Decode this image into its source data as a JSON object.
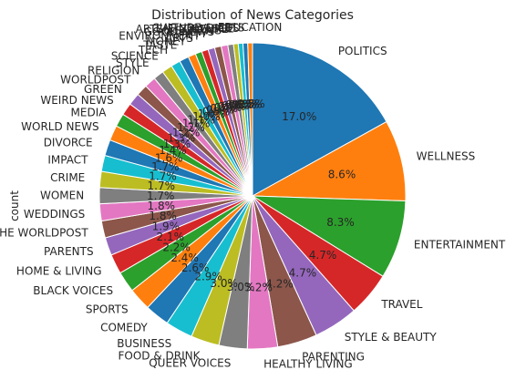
{
  "chart_data": {
    "type": "pie",
    "title": "Distribution of News Categories",
    "ylabel": "count",
    "start_angle_deg": 90,
    "direction": "clockwise",
    "slices": [
      {
        "label": "POLITICS",
        "pct": 17.0,
        "color": "#1f77b4"
      },
      {
        "label": "WELLNESS",
        "pct": 8.6,
        "color": "#ff7f0e"
      },
      {
        "label": "ENTERTAINMENT",
        "pct": 8.3,
        "color": "#2ca02c"
      },
      {
        "label": "TRAVEL",
        "pct": 4.7,
        "color": "#d62728"
      },
      {
        "label": "STYLE & BEAUTY",
        "pct": 4.7,
        "color": "#9467bd"
      },
      {
        "label": "PARENTING",
        "pct": 4.2,
        "color": "#8c564b"
      },
      {
        "label": "HEALTHY LIVING",
        "pct": 3.2,
        "color": "#e377c2"
      },
      {
        "label": "QUEER VOICES",
        "pct": 3.0,
        "color": "#7f7f7f"
      },
      {
        "label": "FOOD & DRINK",
        "pct": 3.0,
        "color": "#bcbd22"
      },
      {
        "label": "BUSINESS",
        "pct": 2.9,
        "color": "#17becf"
      },
      {
        "label": "COMEDY",
        "pct": 2.6,
        "color": "#1f77b4"
      },
      {
        "label": "SPORTS",
        "pct": 2.4,
        "color": "#ff7f0e"
      },
      {
        "label": "BLACK VOICES",
        "pct": 2.2,
        "color": "#2ca02c"
      },
      {
        "label": "HOME & LIVING",
        "pct": 2.1,
        "color": "#d62728"
      },
      {
        "label": "PARENTS",
        "pct": 1.9,
        "color": "#9467bd"
      },
      {
        "label": "THE WORLDPOST",
        "pct": 1.8,
        "color": "#8c564b"
      },
      {
        "label": "WEDDINGS",
        "pct": 1.8,
        "color": "#e377c2"
      },
      {
        "label": "WOMEN",
        "pct": 1.7,
        "color": "#7f7f7f"
      },
      {
        "label": "CRIME",
        "pct": 1.7,
        "color": "#bcbd22"
      },
      {
        "label": "IMPACT",
        "pct": 1.7,
        "color": "#17becf"
      },
      {
        "label": "DIVORCE",
        "pct": 1.7,
        "color": "#1f77b4"
      },
      {
        "label": "WORLD NEWS",
        "pct": 1.6,
        "color": "#ff7f0e"
      },
      {
        "label": "MEDIA",
        "pct": 1.4,
        "color": "#2ca02c"
      },
      {
        "label": "WEIRD NEWS",
        "pct": 1.3,
        "color": "#d62728"
      },
      {
        "label": "GREEN",
        "pct": 1.3,
        "color": "#9467bd"
      },
      {
        "label": "WORLDPOST",
        "pct": 1.2,
        "color": "#8c564b"
      },
      {
        "label": "RELIGION",
        "pct": 1.2,
        "color": "#e377c2"
      },
      {
        "label": "STYLE",
        "pct": 1.1,
        "color": "#7f7f7f"
      },
      {
        "label": "SCIENCE",
        "pct": 1.1,
        "color": "#bcbd22"
      },
      {
        "label": "TECH",
        "pct": 1.0,
        "color": "#17becf"
      },
      {
        "label": "TASTE",
        "pct": 1.0,
        "color": "#1f77b4"
      },
      {
        "label": "MONEY",
        "pct": 0.8,
        "color": "#ff7f0e"
      },
      {
        "label": "ARTS",
        "pct": 0.7,
        "color": "#2ca02c"
      },
      {
        "label": "ENVIRONMENT",
        "pct": 0.7,
        "color": "#d62728"
      },
      {
        "label": "FIFTY",
        "pct": 0.7,
        "color": "#9467bd"
      },
      {
        "label": "GOOD NEWS",
        "pct": 0.7,
        "color": "#8c564b"
      },
      {
        "label": "U.S. NEWS",
        "pct": 0.7,
        "color": "#e377c2"
      },
      {
        "label": "ARTS & CULTURE",
        "pct": 0.6,
        "color": "#7f7f7f"
      },
      {
        "label": "COLLEGE",
        "pct": 0.5,
        "color": "#bcbd22"
      },
      {
        "label": "LATINO VOICES",
        "pct": 0.5,
        "color": "#17becf"
      },
      {
        "label": "CULTURE & ARTS",
        "pct": 0.5,
        "color": "#1f77b4"
      },
      {
        "label": "EDUCATION",
        "pct": 0.5,
        "color": "#ff7f0e"
      }
    ]
  }
}
